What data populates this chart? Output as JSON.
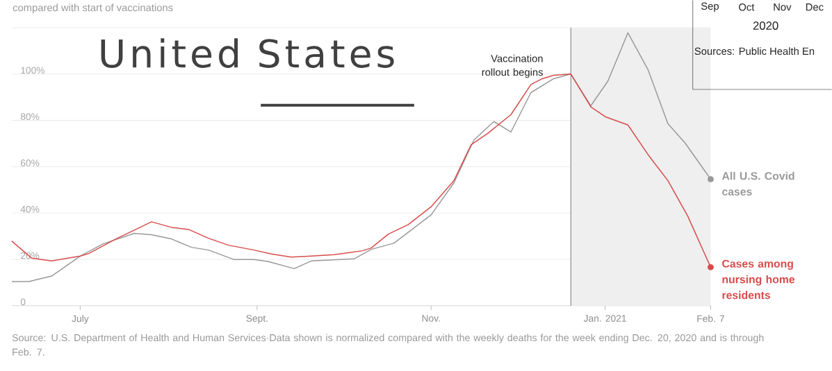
{
  "chart_data": {
    "type": "line",
    "title": "United States",
    "subtitle": "compared with start of vaccinations",
    "annotations": [
      "Sep",
      "Oct",
      "Nov",
      "Dec",
      "2020",
      "Sources: Public Health En",
      "Source: U.S. Department of Health and Human Services·Data shown is normalized compared with the weekly deaths for the week ending Dec. 20, 2020 and is through Feb. 7."
    ],
    "xlim": [
      "2020-06-07",
      "2021-02-07"
    ],
    "xticks": [
      {
        "value": "2020-07-01",
        "label": "July"
      },
      {
        "value": "2020-09-01",
        "label": "Sept."
      },
      {
        "value": "2020-11-01",
        "label": "Nov."
      },
      {
        "value": "2021-01-01",
        "label": "Jan. 2021"
      },
      {
        "value": "2021-02-07",
        "label": "Feb. 7"
      }
    ],
    "ylim": [
      0,
      120
    ],
    "yticks": [
      0,
      {
        "value": 20,
        "label": "20%"
      },
      {
        "value": 40,
        "label": "40%"
      },
      {
        "value": 60,
        "label": "60%"
      },
      {
        "value": 80,
        "label": "80%"
      },
      {
        "value": 100,
        "label": "100%"
      },
      {
        "value": 120,
        "label": null
      }
    ],
    "grid": "y",
    "legend": false,
    "bands": [
      {
        "axis": "x",
        "from": "2020-12-20",
        "to": "2021-02-07",
        "color": "#efefef"
      }
    ],
    "ref_lines": [
      {
        "axis": "x",
        "value": "2020-12-20",
        "label": "Vaccination rollout begins",
        "color": "#8a8a8a"
      }
    ],
    "series": [
      {
        "name": "All U.S. Covid cases",
        "color": "#999999",
        "x": [
          "2020-06-07",
          "2020-06-13",
          "2020-06-21",
          "2020-07-01",
          "2020-07-09",
          "2020-07-20",
          "2020-07-26",
          "2020-08-02",
          "2020-08-09",
          "2020-08-15",
          "2020-08-24",
          "2020-08-31",
          "2020-09-05",
          "2020-09-14",
          "2020-09-20",
          "2020-10-05",
          "2020-10-11",
          "2020-10-19",
          "2020-11-01",
          "2020-11-09",
          "2020-11-16",
          "2020-11-23",
          "2020-11-29",
          "2020-12-06",
          "2020-12-14",
          "2020-12-20",
          "2020-12-27",
          "2021-01-02",
          "2021-01-09",
          "2021-01-16",
          "2021-01-23",
          "2021-01-29",
          "2021-02-07"
        ],
        "values": [
          10.4,
          10.4,
          12.8,
          21.4,
          26.7,
          31.2,
          30.6,
          28.8,
          25.2,
          24,
          19.9,
          19.9,
          19,
          16,
          19.3,
          20.2,
          24.3,
          27,
          39.2,
          53,
          71.5,
          79.5,
          75,
          92,
          98,
          100,
          86.3,
          97,
          117.8,
          102,
          78.6,
          70.3,
          54.6
        ]
      },
      {
        "name": "Cases among nursing home residents",
        "color": "#d84b4b",
        "x": [
          "2020-06-07",
          "2020-06-14",
          "2020-06-21",
          "2020-07-01",
          "2020-07-04",
          "2020-07-13",
          "2020-07-26",
          "2020-08-02",
          "2020-08-08",
          "2020-08-15",
          "2020-08-22",
          "2020-08-31",
          "2020-09-06",
          "2020-09-13",
          "2020-09-20",
          "2020-09-28",
          "2020-10-08",
          "2020-10-11",
          "2020-10-17",
          "2020-10-24",
          "2020-11-01",
          "2020-11-09",
          "2020-11-15",
          "2020-11-21",
          "2020-11-29",
          "2020-12-06",
          "2020-12-10",
          "2020-12-14",
          "2020-12-20",
          "2020-12-27",
          "2021-01-01",
          "2021-01-09",
          "2021-01-16",
          "2021-01-23",
          "2021-01-30",
          "2021-02-07"
        ],
        "values": [
          27.9,
          20.5,
          19.3,
          21.4,
          22.5,
          28.5,
          36.2,
          33.8,
          32.9,
          29.1,
          26.1,
          24,
          22.3,
          21,
          21.4,
          22,
          23.7,
          24.9,
          30.9,
          35,
          42.7,
          54,
          69.4,
          74.5,
          82.5,
          95.5,
          98,
          99.5,
          100,
          85.8,
          81.6,
          78,
          65.3,
          54,
          38.6,
          16.6
        ]
      }
    ]
  }
}
